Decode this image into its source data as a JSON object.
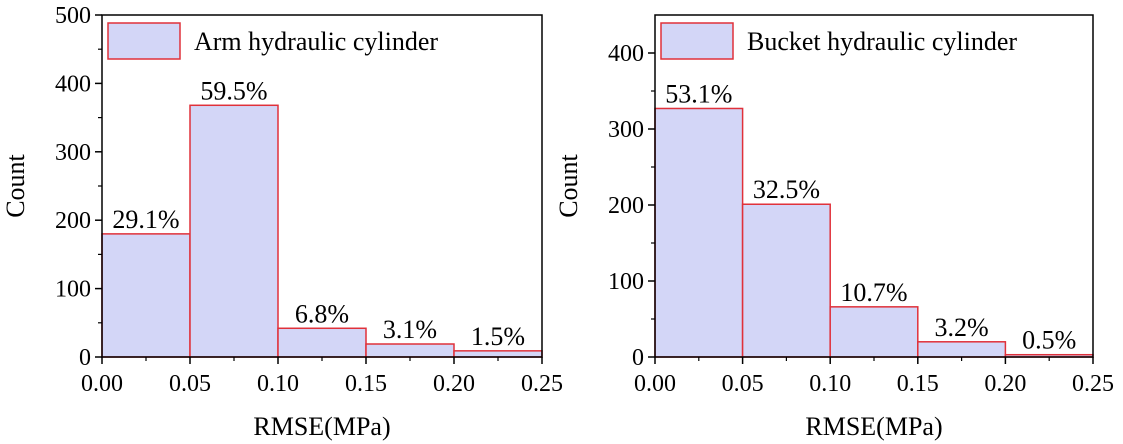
{
  "chart_data": [
    {
      "type": "bar",
      "title": "",
      "xlabel": "RMSE(MPa)",
      "ylabel": "Count",
      "bin_edges": [
        0.0,
        0.05,
        0.1,
        0.15,
        0.2,
        0.25
      ],
      "x_ticks": [
        "0.00",
        "0.05",
        "0.10",
        "0.15",
        "0.20",
        "0.25"
      ],
      "y_ticks": [
        "0",
        "100",
        "200",
        "300",
        "400",
        "500"
      ],
      "ylim": [
        0,
        500
      ],
      "xlim": [
        0,
        0.25
      ],
      "series": [
        {
          "name": "Arm hydraulic cylinder",
          "values": [
            180,
            368,
            42,
            19,
            9
          ],
          "labels": [
            "29.1%",
            "59.5%",
            "6.8%",
            "3.1%",
            "1.5%"
          ]
        }
      ],
      "legend_position": "top-left",
      "grid": false
    },
    {
      "type": "bar",
      "title": "",
      "xlabel": "RMSE(MPa)",
      "ylabel": "Count",
      "bin_edges": [
        0.0,
        0.05,
        0.1,
        0.15,
        0.2,
        0.25
      ],
      "x_ticks": [
        "0.00",
        "0.05",
        "0.10",
        "0.15",
        "0.20",
        "0.25"
      ],
      "y_ticks": [
        "0",
        "100",
        "200",
        "300",
        "400"
      ],
      "ylim": [
        0,
        450
      ],
      "xlim": [
        0,
        0.25
      ],
      "series": [
        {
          "name": "Bucket hydraulic cylinder",
          "values": [
            327,
            201,
            66,
            20,
            3
          ],
          "labels": [
            "53.1%",
            "32.5%",
            "10.7%",
            "3.2%",
            "0.5%"
          ]
        }
      ],
      "legend_position": "top-left",
      "grid": false
    }
  ],
  "colors": {
    "bar_fill": "#d3d6f7",
    "bar_edge": "#e0313a",
    "axis": "#000000",
    "background": "#ffffff"
  }
}
